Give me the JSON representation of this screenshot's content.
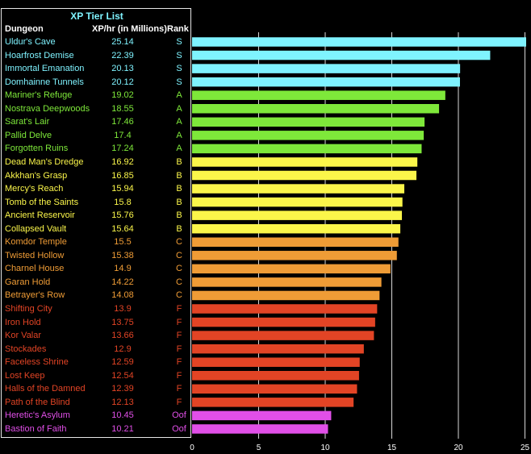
{
  "chart_data": {
    "type": "bar",
    "orientation": "horizontal",
    "title": "XP Tier List",
    "columns": [
      "Dungeon",
      "XP/hr (in Millions)",
      "Rank"
    ],
    "xlim": [
      0,
      25
    ],
    "x_ticks": [
      "0",
      "5",
      "10",
      "15",
      "20",
      "25"
    ],
    "grid": true,
    "tier_colors": {
      "S": "#7ff3ff",
      "A": "#7ee83a",
      "B": "#fbf64a",
      "C": "#ef9c36",
      "F": "#e24425",
      "Oof": "#e14fe8"
    },
    "rows": [
      {
        "dungeon": "Uldur's Cave",
        "value": 25.14,
        "value_label": "25.14",
        "rank": "S"
      },
      {
        "dungeon": "Hoarfrost Demise",
        "value": 22.39,
        "value_label": "22.39",
        "rank": "S"
      },
      {
        "dungeon": "Immortal Emanation",
        "value": 20.13,
        "value_label": "20.13",
        "rank": "S"
      },
      {
        "dungeon": "Domhainne Tunnels",
        "value": 20.12,
        "value_label": "20.12",
        "rank": "S"
      },
      {
        "dungeon": "Mariner's Refuge",
        "value": 19.02,
        "value_label": "19.02",
        "rank": "A"
      },
      {
        "dungeon": "Nostrava Deepwoods",
        "value": 18.55,
        "value_label": "18.55",
        "rank": "A"
      },
      {
        "dungeon": "Sarat's Lair",
        "value": 17.46,
        "value_label": "17.46",
        "rank": "A"
      },
      {
        "dungeon": "Pallid Delve",
        "value": 17.4,
        "value_label": "17.4",
        "rank": "A"
      },
      {
        "dungeon": "Forgotten Ruins",
        "value": 17.24,
        "value_label": "17.24",
        "rank": "A"
      },
      {
        "dungeon": "Dead Man's Dredge",
        "value": 16.92,
        "value_label": "16.92",
        "rank": "B"
      },
      {
        "dungeon": "Akkhan's Grasp",
        "value": 16.85,
        "value_label": "16.85",
        "rank": "B"
      },
      {
        "dungeon": "Mercy's Reach",
        "value": 15.94,
        "value_label": "15.94",
        "rank": "B"
      },
      {
        "dungeon": "Tomb of the Saints",
        "value": 15.8,
        "value_label": "15.8",
        "rank": "B"
      },
      {
        "dungeon": "Ancient Reservoir",
        "value": 15.76,
        "value_label": "15.76",
        "rank": "B"
      },
      {
        "dungeon": "Collapsed Vault",
        "value": 15.64,
        "value_label": "15.64",
        "rank": "B"
      },
      {
        "dungeon": "Komdor Temple",
        "value": 15.5,
        "value_label": "15.5",
        "rank": "C"
      },
      {
        "dungeon": "Twisted Hollow",
        "value": 15.38,
        "value_label": "15.38",
        "rank": "C"
      },
      {
        "dungeon": "Charnel House",
        "value": 14.9,
        "value_label": "14.9",
        "rank": "C"
      },
      {
        "dungeon": "Garan Hold",
        "value": 14.22,
        "value_label": "14.22",
        "rank": "C"
      },
      {
        "dungeon": "Betrayer's Row",
        "value": 14.08,
        "value_label": "14.08",
        "rank": "C"
      },
      {
        "dungeon": "Shifting City",
        "value": 13.9,
        "value_label": "13.9",
        "rank": "F"
      },
      {
        "dungeon": "Iron Hold",
        "value": 13.75,
        "value_label": "13.75",
        "rank": "F"
      },
      {
        "dungeon": "Kor Valar",
        "value": 13.66,
        "value_label": "13.66",
        "rank": "F"
      },
      {
        "dungeon": "Stockades",
        "value": 12.9,
        "value_label": "12.9",
        "rank": "F"
      },
      {
        "dungeon": "Faceless Shrine",
        "value": 12.59,
        "value_label": "12.59",
        "rank": "F"
      },
      {
        "dungeon": "Lost Keep",
        "value": 12.54,
        "value_label": "12.54",
        "rank": "F"
      },
      {
        "dungeon": "Halls of the Damned",
        "value": 12.39,
        "value_label": "12.39",
        "rank": "F"
      },
      {
        "dungeon": "Path of the Blind",
        "value": 12.13,
        "value_label": "12.13",
        "rank": "F"
      },
      {
        "dungeon": "Heretic's Asylum",
        "value": 10.45,
        "value_label": "10.45",
        "rank": "Oof"
      },
      {
        "dungeon": "Bastion of Faith",
        "value": 10.21,
        "value_label": "10.21",
        "rank": "Oof"
      }
    ]
  }
}
